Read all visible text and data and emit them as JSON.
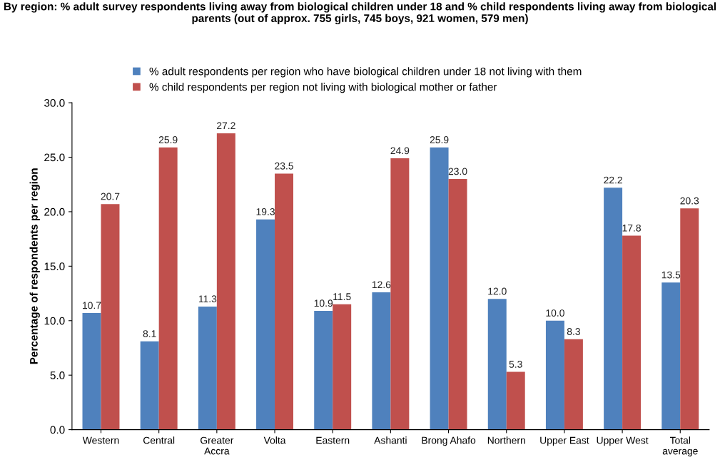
{
  "chart_data": {
    "type": "bar",
    "title": "By region: % adult survey respondents living away from biological children under 18 and % child respondents living away from biological parents (out of approx. 755 girls, 745 boys, 921 women, 579 men)",
    "ylabel": "Percentage of respondents per region",
    "categories": [
      "Western",
      "Central",
      "Greater Accra",
      "Volta",
      "Eastern",
      "Ashanti",
      "Brong Ahafo",
      "Northern",
      "Upper East",
      "Upper West",
      "Total average"
    ],
    "series": [
      {
        "name": "% adult respondents per region who have biological children under 18 not living with them",
        "color": "#4f81bd",
        "values": [
          10.7,
          8.1,
          11.3,
          19.3,
          10.9,
          12.6,
          25.9,
          12.0,
          10.0,
          22.2,
          13.5
        ],
        "value_labels": [
          "10.7",
          "8.1",
          "11.3",
          "19.3",
          "10.9",
          "12.6",
          "25.9",
          "12.0",
          "10.0",
          "22.2",
          "13.5"
        ]
      },
      {
        "name": "% child respondents per region not living with biological mother or father",
        "color": "#c0504d",
        "values": [
          20.7,
          25.9,
          27.2,
          23.5,
          11.5,
          24.9,
          23.0,
          5.3,
          8.3,
          17.8,
          20.3
        ],
        "value_labels": [
          "20.7",
          "25.9",
          "27.2",
          "23.5",
          "11.5",
          "24.9",
          "23.0",
          "5.3",
          "8.3",
          "17.8",
          "20.3"
        ]
      }
    ],
    "ylim": [
      0,
      30
    ],
    "yticks": [
      {
        "value": 0,
        "label": "0.0"
      },
      {
        "value": 5,
        "label": "5.0"
      },
      {
        "value": 10,
        "label": "10.0"
      },
      {
        "value": 15,
        "label": "15.0"
      },
      {
        "value": 20,
        "label": "20.0"
      },
      {
        "value": 25,
        "label": "25.0"
      },
      {
        "value": 30,
        "label": "30.0"
      }
    ],
    "grid": false,
    "legend": "top"
  }
}
